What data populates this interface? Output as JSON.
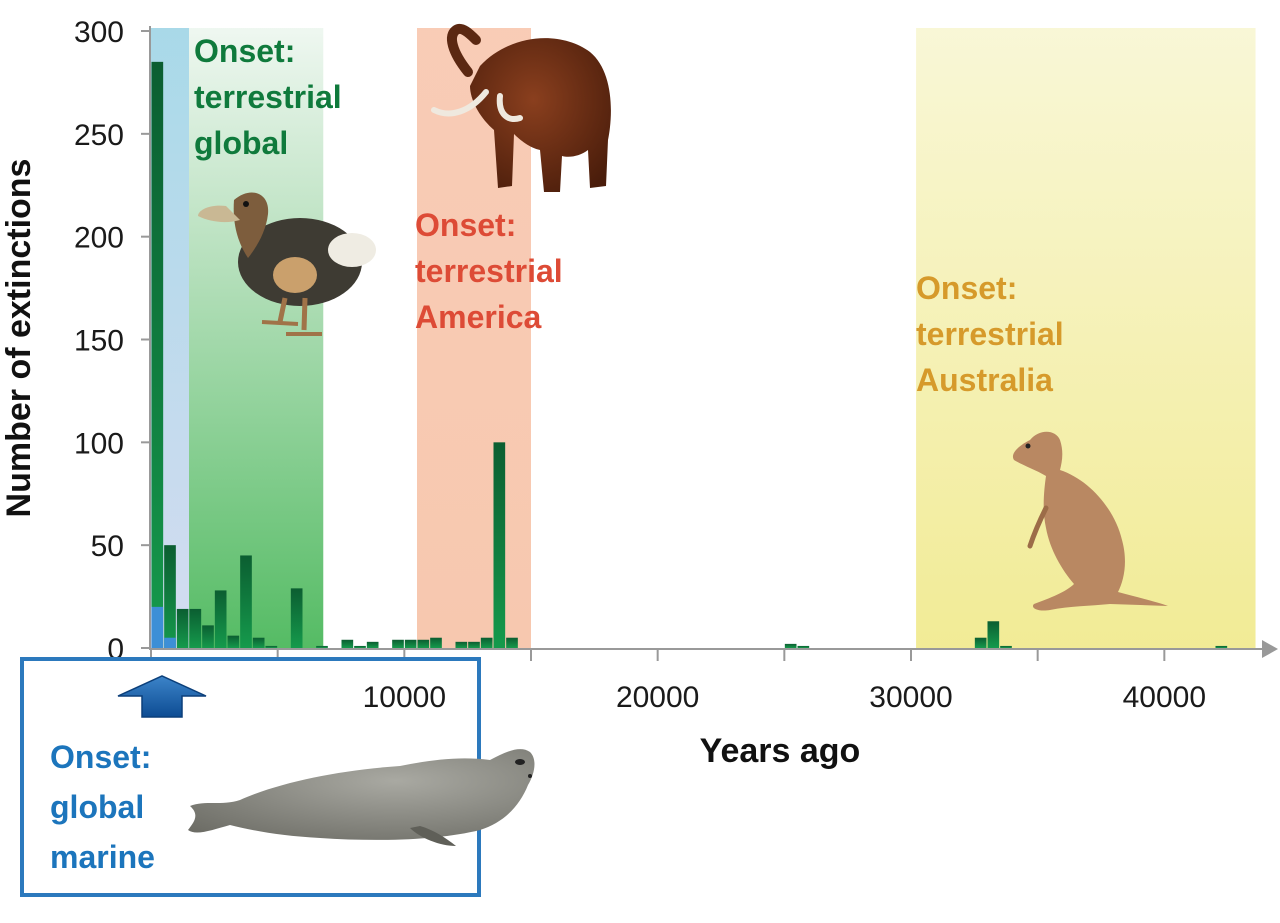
{
  "chart_data": {
    "type": "bar",
    "xlabel": "Years ago",
    "ylabel": "Number of extinctions",
    "xlim": [
      0,
      44000
    ],
    "ylim": [
      0,
      300
    ],
    "x_ticks": [
      10000,
      20000,
      30000,
      40000
    ],
    "y_ticks": [
      0,
      50,
      100,
      150,
      200,
      250,
      300
    ],
    "bin_width": 500,
    "series": [
      {
        "key": "terrestrial",
        "color": "#0c6b38",
        "bars": [
          {
            "x": 0,
            "value": 285
          },
          {
            "x": 500,
            "value": 50
          },
          {
            "x": 1000,
            "value": 19
          },
          {
            "x": 1500,
            "value": 19
          },
          {
            "x": 2000,
            "value": 11
          },
          {
            "x": 2500,
            "value": 28
          },
          {
            "x": 3000,
            "value": 6
          },
          {
            "x": 3500,
            "value": 45
          },
          {
            "x": 4000,
            "value": 5
          },
          {
            "x": 4500,
            "value": 1
          },
          {
            "x": 5500,
            "value": 29
          },
          {
            "x": 6500,
            "value": 1
          },
          {
            "x": 7500,
            "value": 4
          },
          {
            "x": 8000,
            "value": 1
          },
          {
            "x": 8500,
            "value": 3
          },
          {
            "x": 9500,
            "value": 4
          },
          {
            "x": 10000,
            "value": 4
          },
          {
            "x": 10500,
            "value": 4
          },
          {
            "x": 11000,
            "value": 5
          },
          {
            "x": 12000,
            "value": 3
          },
          {
            "x": 12500,
            "value": 3
          },
          {
            "x": 13000,
            "value": 5
          },
          {
            "x": 13500,
            "value": 100
          },
          {
            "x": 14000,
            "value": 5
          },
          {
            "x": 25000,
            "value": 2
          },
          {
            "x": 25500,
            "value": 1
          },
          {
            "x": 32500,
            "value": 5
          },
          {
            "x": 33000,
            "value": 13
          },
          {
            "x": 33500,
            "value": 1
          },
          {
            "x": 42000,
            "value": 1
          }
        ]
      },
      {
        "key": "marine",
        "color": "#3d8fd6",
        "bars": [
          {
            "x": 0,
            "value": 20
          },
          {
            "x": 500,
            "value": 5
          }
        ]
      }
    ],
    "regions": [
      {
        "key": "marine",
        "from": 0,
        "to": 1500,
        "color": "#a6d6e8"
      },
      {
        "key": "global",
        "from": 1500,
        "to": 6800,
        "color": "#48b75a"
      },
      {
        "key": "america",
        "from": 10500,
        "to": 15000,
        "color": "#f6bfa4"
      },
      {
        "key": "australia",
        "from": 30200,
        "to": 43600,
        "color": "#f2ec9a"
      }
    ]
  },
  "annotations": {
    "global": {
      "lines": [
        "Onset:",
        "terrestrial",
        "global"
      ],
      "color": "#0f7a3c"
    },
    "america": {
      "lines": [
        "Onset:",
        "terrestrial",
        "America"
      ],
      "color": "#dd4b36"
    },
    "australia": {
      "lines": [
        "Onset:",
        "terrestrial",
        "Australia"
      ],
      "color": "#d69a2b"
    },
    "marine": {
      "lines": [
        "Onset:",
        "global",
        "marine"
      ],
      "color": "#1c75bc"
    }
  },
  "icons": {
    "mammoth": "mammoth-illustration",
    "dodo": "dodo-illustration",
    "kangaroo": "kangaroo-illustration",
    "seal": "monk-seal-illustration",
    "arrow": "up-arrow-icon"
  }
}
